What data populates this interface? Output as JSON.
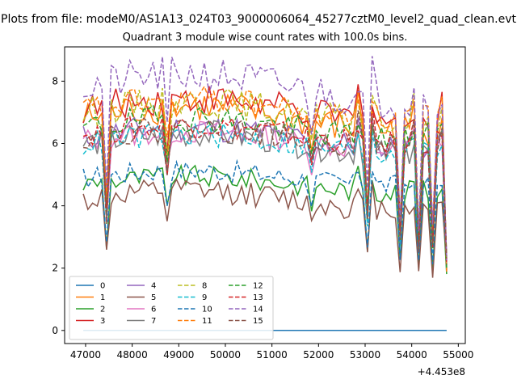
{
  "figure": {
    "suptitle": "Plots from file: modeM0/AS1A13_024T03_9000006064_45277cztM0_level2_quad_clean.evt",
    "x_offset_label": "+4.453e8"
  },
  "chart_data": {
    "type": "line",
    "title": "Quadrant 3 module wise count rates with 100.0s bins.",
    "xlabel": "",
    "ylabel": "",
    "x_offset": 445300000,
    "xlim": [
      46550,
      55150
    ],
    "ylim": [
      -0.42,
      9.1
    ],
    "xticks": [
      47000,
      48000,
      49000,
      50000,
      51000,
      52000,
      53000,
      54000,
      55000
    ],
    "yticks": [
      0,
      2,
      4,
      6,
      8
    ],
    "legend": {
      "position": "lower-left",
      "ncol": 4
    },
    "grid": false,
    "x_start": 46950,
    "x_step": 100,
    "n_points": 79,
    "series": [
      {
        "name": "0",
        "color": "#1f77b4",
        "dash": "solid",
        "base": 0,
        "amp": 0,
        "seed": 0
      },
      {
        "name": "1",
        "color": "#ff7f0e",
        "dash": "solid",
        "base": 6.8,
        "amp": 0.55,
        "seed": 1
      },
      {
        "name": "2",
        "color": "#2ca02c",
        "dash": "solid",
        "base": 4.7,
        "amp": 0.35,
        "seed": 2
      },
      {
        "name": "3",
        "color": "#d62728",
        "dash": "solid",
        "base": 7.1,
        "amp": 0.5,
        "seed": 3
      },
      {
        "name": "4",
        "color": "#9467bd",
        "dash": "solid",
        "base": 6.2,
        "amp": 0.45,
        "seed": 4
      },
      {
        "name": "5",
        "color": "#8c564b",
        "dash": "solid",
        "base": 4.2,
        "amp": 0.4,
        "seed": 5
      },
      {
        "name": "6",
        "color": "#e377c2",
        "dash": "solid",
        "base": 6.1,
        "amp": 0.4,
        "seed": 6
      },
      {
        "name": "7",
        "color": "#7f7f7f",
        "dash": "solid",
        "base": 6.0,
        "amp": 0.45,
        "seed": 7
      },
      {
        "name": "8",
        "color": "#bcbd22",
        "dash": "dashed",
        "base": 7.0,
        "amp": 0.5,
        "seed": 8
      },
      {
        "name": "9",
        "color": "#17becf",
        "dash": "dashed",
        "base": 6.0,
        "amp": 0.4,
        "seed": 9
      },
      {
        "name": "10",
        "color": "#1f77b4",
        "dash": "dashed",
        "base": 4.9,
        "amp": 0.35,
        "seed": 10
      },
      {
        "name": "11",
        "color": "#ff7f0e",
        "dash": "dashed",
        "base": 7.1,
        "amp": 0.45,
        "seed": 11
      },
      {
        "name": "12",
        "color": "#2ca02c",
        "dash": "dashed",
        "base": 6.5,
        "amp": 0.45,
        "seed": 12
      },
      {
        "name": "13",
        "color": "#d62728",
        "dash": "dashed",
        "base": 6.3,
        "amp": 0.4,
        "seed": 13
      },
      {
        "name": "14",
        "color": "#9467bd",
        "dash": "dashed",
        "base": 7.8,
        "amp": 0.6,
        "seed": 14
      },
      {
        "name": "15",
        "color": "#8c564b",
        "dash": "dashed",
        "base": 6.2,
        "amp": 0.4,
        "seed": 15
      }
    ],
    "events": [
      {
        "x": 47450,
        "factor": 0.58
      },
      {
        "x": 48750,
        "factor": 0.8
      },
      {
        "x": 51850,
        "factor": 0.86
      },
      {
        "x": 53050,
        "factor": 0.6
      },
      {
        "x": 53750,
        "factor": 0.5
      },
      {
        "x": 54150,
        "factor": 0.45
      },
      {
        "x": 54450,
        "factor": 0.45
      },
      {
        "x": 54850,
        "factor": 0.28
      }
    ],
    "peaks": [
      {
        "x": 52850,
        "factor": 1.12
      },
      {
        "x": 53150,
        "factor": 1.12
      },
      {
        "x": 54050,
        "factor": 1.08
      },
      {
        "x": 54650,
        "factor": 1.05
      }
    ]
  }
}
